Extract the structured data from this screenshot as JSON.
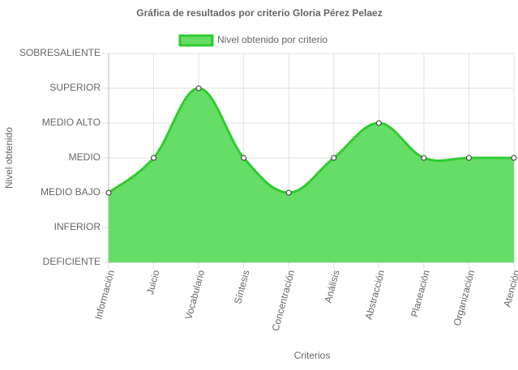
{
  "chart_data": {
    "type": "area",
    "title": "Gráfica de resultados por criterio Gloria Pérez Pelaez",
    "x_label": "Criterios",
    "y_label": "Nivel obtenido",
    "categories": [
      "Información",
      "Juicio",
      "Vocabulario",
      "Síntesis",
      "Concentración",
      "Análisis",
      "Abstracción",
      "Planeación",
      "Organización",
      "Atención"
    ],
    "series": [
      {
        "name": "Nivel obtenido por criterio",
        "color": "#2ecc2e",
        "fill": "#66dd66",
        "values": [
          2,
          3,
          5,
          3,
          2,
          3,
          4,
          3,
          3,
          3
        ]
      }
    ],
    "ylim": [
      0,
      6
    ],
    "yticks": [
      {
        "value": 0,
        "label": "DEFICIENTE"
      },
      {
        "value": 1,
        "label": "INFERIOR"
      },
      {
        "value": 2,
        "label": "MEDIO BAJO"
      },
      {
        "value": 3,
        "label": "MEDIO"
      },
      {
        "value": 4,
        "label": "MEDIO ALTO"
      },
      {
        "value": 5,
        "label": "SUPERIOR"
      },
      {
        "value": 6,
        "label": "SOBRESALIENTE"
      }
    ],
    "grid": true,
    "legend": "top"
  }
}
